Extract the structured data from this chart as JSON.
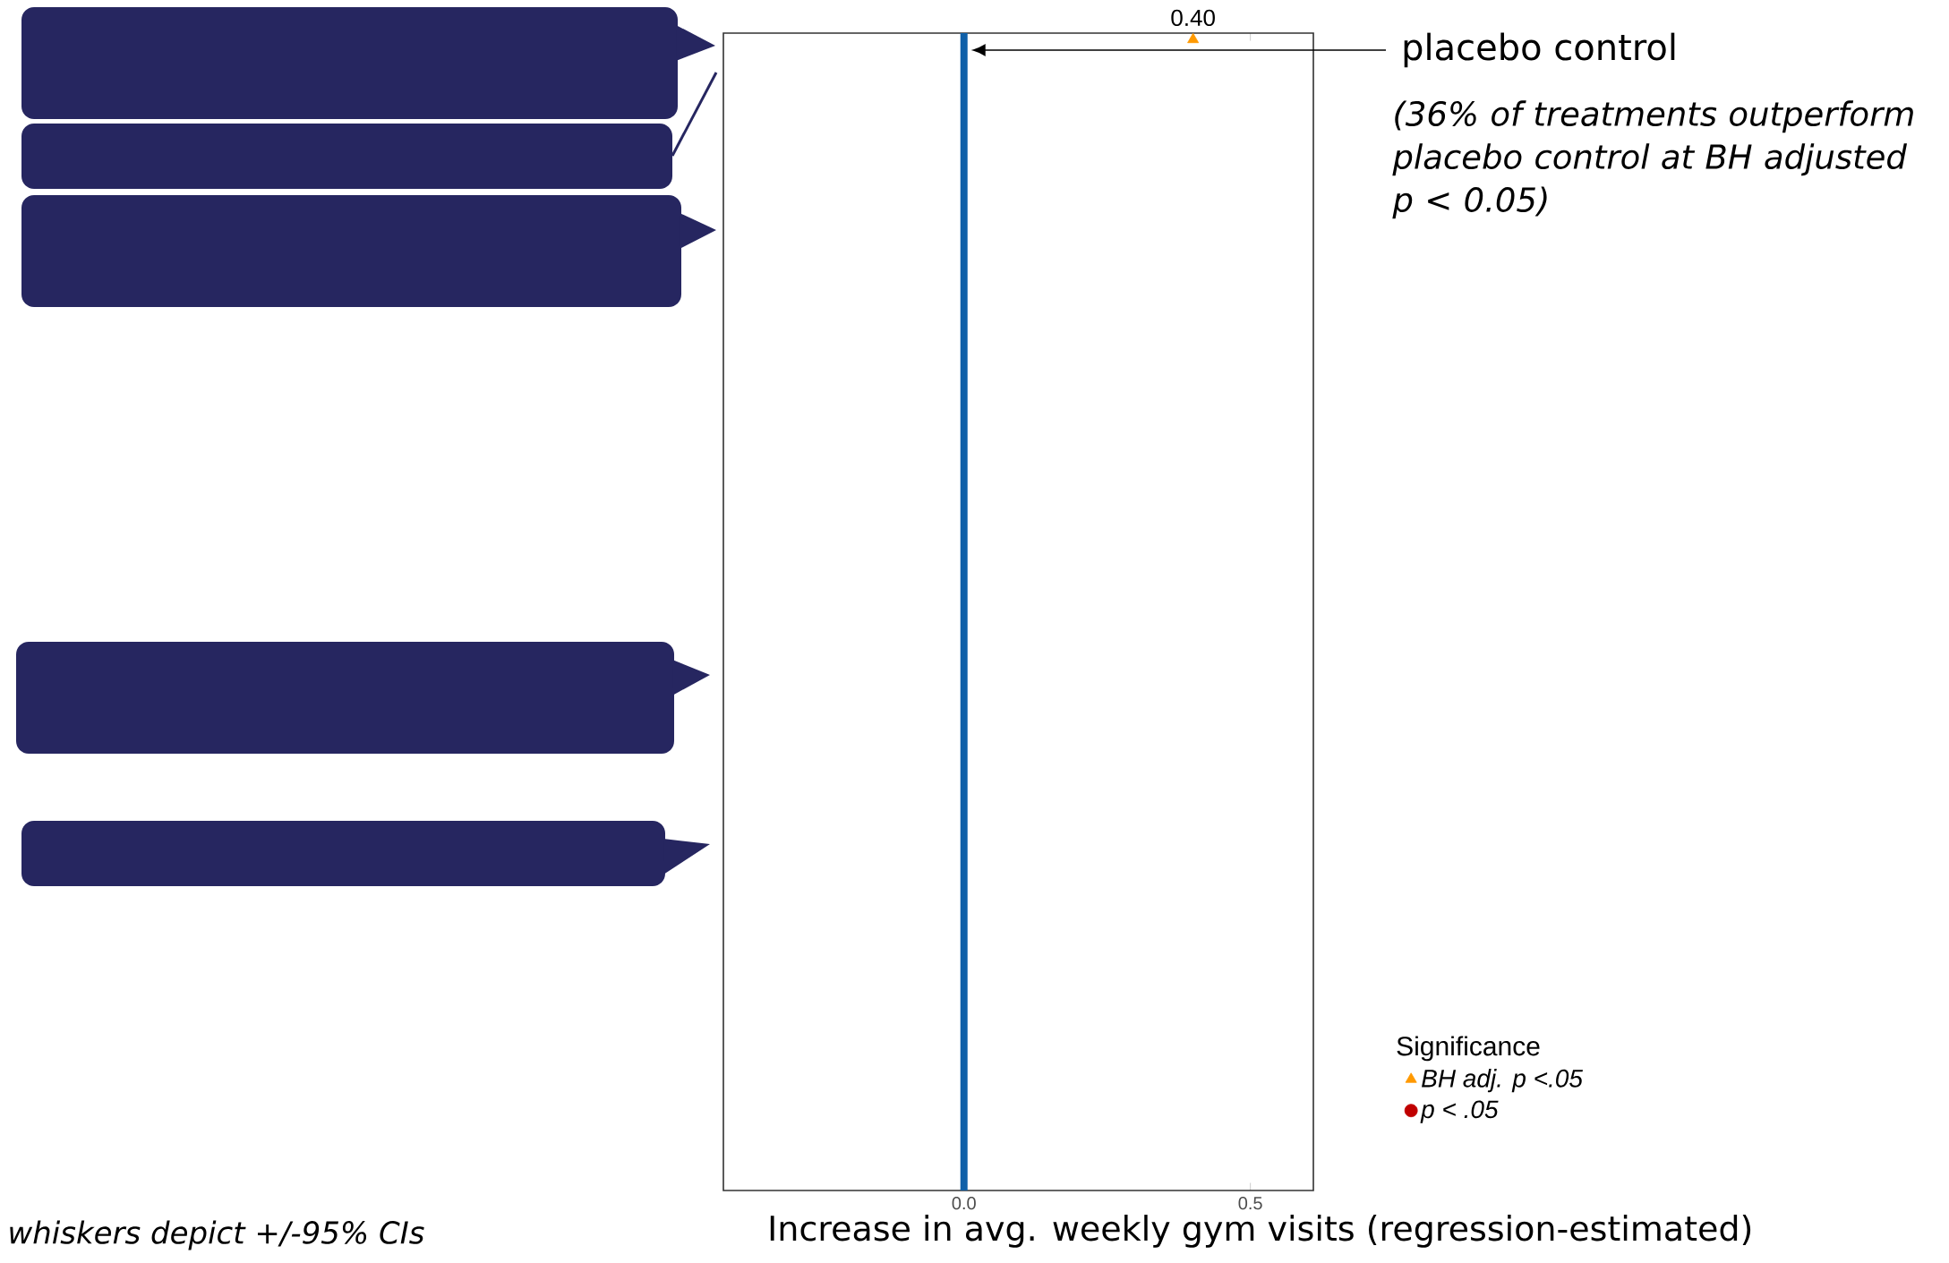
{
  "chart_data": {
    "type": "scatter",
    "orientation": "horizontal",
    "xlabel": "Increase in avg. weekly gym visits (regression-estimated)",
    "categories": [
      null,
      null,
      null,
      null,
      null,
      null,
      null,
      null,
      null,
      null,
      null,
      null,
      null,
      null,
      null,
      null,
      null,
      null,
      null,
      null,
      null,
      null,
      null,
      null,
      null,
      null,
      null,
      null,
      null,
      null,
      null,
      null,
      null,
      null,
      null,
      null,
      null,
      null,
      null,
      null,
      null,
      null,
      null,
      null,
      null,
      null,
      null,
      null,
      null,
      null,
      null,
      null,
      null,
      null,
      null,
      null,
      null,
      null,
      null,
      null,
      null,
      null,
      null,
      null,
      null,
      null,
      null,
      null,
      null,
      null,
      null,
      null,
      null,
      null,
      null,
      null,
      null,
      null,
      null,
      null,
      null,
      null,
      null,
      null,
      null,
      null,
      null,
      null,
      null,
      null
    ],
    "xlim": [
      -0.42,
      0.61
    ],
    "xticks": [
      {
        "value": 0,
        "label": "0.0"
      },
      {
        "value": 0.5,
        "label": "0.5"
      }
    ],
    "series": [
      {
        "name": "BH adj. p <.05",
        "color": "#ff9900",
        "marker": "triangle",
        "values": [
          0.4,
          null,
          null,
          null,
          null,
          null,
          null,
          null,
          null,
          null,
          null,
          null,
          null,
          null,
          null,
          null,
          null,
          null,
          null,
          null,
          null,
          null,
          null,
          null,
          null,
          null,
          null,
          null,
          null,
          null,
          null,
          null,
          null,
          null,
          null,
          null,
          null,
          null,
          null,
          null,
          null,
          null,
          null,
          null,
          null,
          null,
          null,
          null,
          null,
          null,
          null,
          null,
          null,
          null,
          null,
          null,
          null,
          null,
          null,
          null,
          null,
          null,
          null,
          null,
          null,
          null,
          null,
          null,
          null,
          null,
          null,
          null,
          null,
          null,
          null,
          null,
          null,
          null,
          null,
          null,
          null,
          null,
          null,
          null,
          null,
          null,
          null,
          null,
          null,
          null
        ],
        "value_labels": [
          "0.40",
          null,
          null,
          null,
          null,
          null,
          null,
          null,
          null,
          null,
          null,
          null,
          null,
          null,
          null,
          null,
          null,
          null,
          null,
          null,
          null,
          null,
          null,
          null,
          null,
          null,
          null,
          null,
          null,
          null,
          null,
          null,
          null,
          null,
          null,
          null,
          null,
          null,
          null,
          null,
          null,
          null,
          null,
          null,
          null,
          null,
          null,
          null,
          null,
          null,
          null,
          null,
          null,
          null,
          null,
          null,
          null,
          null,
          null,
          null,
          null,
          null,
          null,
          null,
          null,
          null,
          null,
          null,
          null,
          null,
          null,
          null,
          null,
          null,
          null,
          null,
          null,
          null,
          null,
          null,
          null,
          null,
          null,
          null,
          null,
          null,
          null,
          null,
          null,
          null
        ]
      },
      {
        "name": "p < .05",
        "color": "#c00000",
        "marker": "circle",
        "values": [
          null,
          null,
          null,
          null,
          null,
          null,
          null,
          null,
          null,
          null,
          null,
          null,
          null,
          null,
          null,
          null,
          null,
          null,
          null,
          null,
          null,
          null,
          null,
          null,
          null,
          null,
          null,
          null,
          null,
          null,
          null,
          null,
          null,
          null,
          null,
          null,
          null,
          null,
          null,
          null,
          null,
          null,
          null,
          null,
          null,
          null,
          null,
          null,
          null,
          null,
          null,
          null,
          null,
          null,
          null,
          null,
          null,
          null,
          null,
          null,
          null,
          null,
          null,
          null,
          null,
          null,
          null,
          null,
          null,
          null,
          null,
          null,
          null,
          null,
          null,
          null,
          null,
          null,
          null,
          null,
          null,
          null,
          null,
          null,
          null,
          null,
          null,
          null,
          null,
          null
        ]
      }
    ],
    "legend_title": "Significance",
    "legend": "right",
    "tick_labels": "x",
    "ref_lines": [
      {
        "axis": "x",
        "value": 0,
        "color": "#1060a8"
      }
    ],
    "annotations": [
      "placebo control",
      "(36% of treatments outperform placebo control at BH adjusted p < 0.05)",
      "whiskers depict +/-95% CIs"
    ]
  }
}
